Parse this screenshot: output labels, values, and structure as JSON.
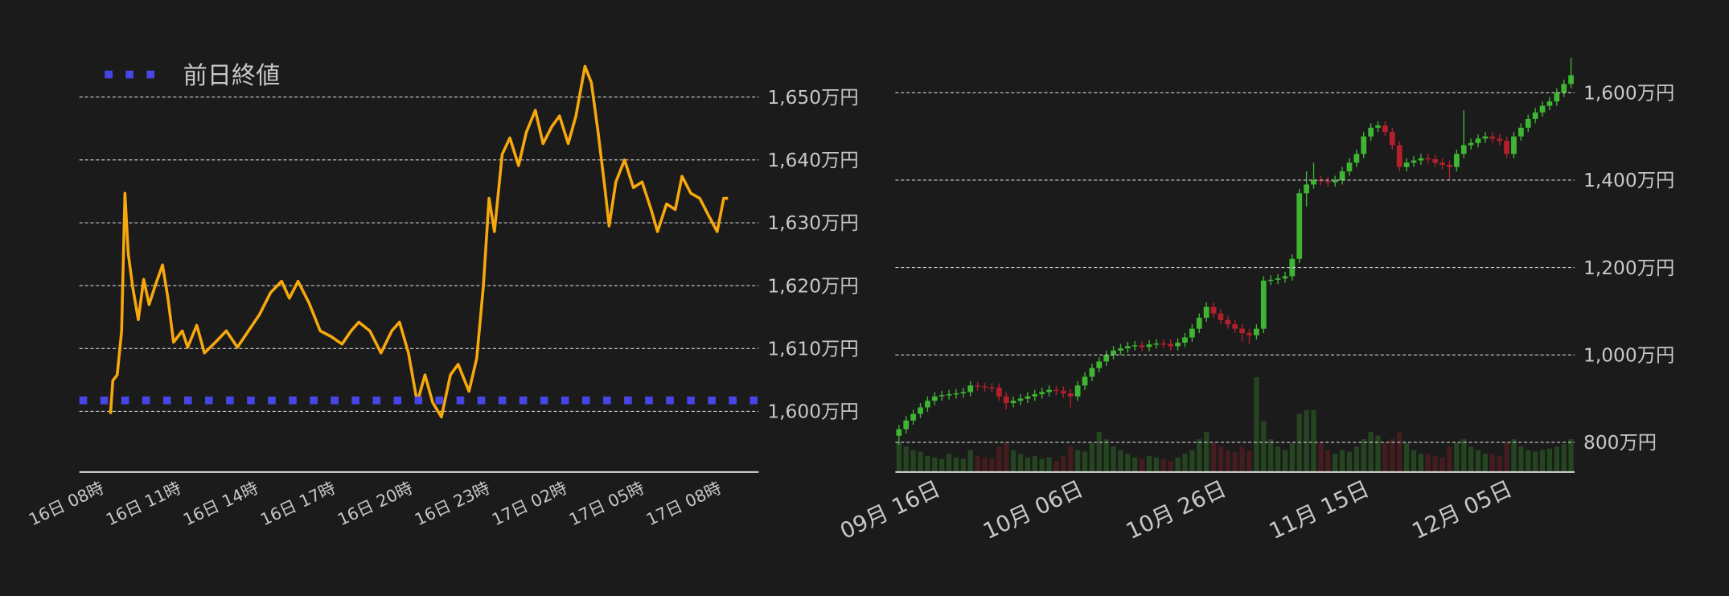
{
  "chart_data": [
    {
      "type": "line",
      "x": [
        8.21,
        8.3,
        8.47,
        8.64,
        8.77,
        8.9,
        9.07,
        9.29,
        9.5,
        9.71,
        9.93,
        10.23,
        10.44,
        10.66,
        11.0,
        11.21,
        11.56,
        11.86,
        12.29,
        12.71,
        13.14,
        13.57,
        14.0,
        14.43,
        14.86,
        15.16,
        15.5,
        15.93,
        16.36,
        16.79,
        17.21,
        17.56,
        17.86,
        18.29,
        18.72,
        19.14,
        19.44,
        19.79,
        20.13,
        20.43,
        20.73,
        21.07,
        21.42,
        21.72,
        22.14,
        22.44,
        22.7,
        22.92,
        23.13,
        23.43,
        23.73,
        24.07,
        24.37,
        24.72,
        25.02,
        25.36,
        25.66,
        26.0,
        26.3,
        26.65,
        26.9,
        27.16,
        27.42,
        27.59,
        27.85,
        28.19,
        28.53,
        28.87,
        29.22,
        29.47,
        29.82,
        30.16,
        30.42,
        30.76,
        31.11,
        31.45,
        31.79,
        32.04,
        32.21
      ],
      "series": [
        {
          "color": "#f7a80d",
          "values": [
            1599.6,
            1604.9,
            1605.8,
            1612.8,
            1634.7,
            1625.1,
            1619.8,
            1614.6,
            1621.0,
            1617.0,
            1619.8,
            1623.3,
            1618.0,
            1611.0,
            1612.8,
            1610.2,
            1613.7,
            1609.3,
            1611.0,
            1612.8,
            1610.2,
            1612.8,
            1615.4,
            1618.9,
            1620.7,
            1618.0,
            1620.7,
            1617.2,
            1612.8,
            1611.9,
            1610.7,
            1612.8,
            1614.2,
            1612.8,
            1609.3,
            1612.8,
            1614.2,
            1609.3,
            1601.4,
            1605.8,
            1601.4,
            1599.1,
            1605.8,
            1607.5,
            1603.2,
            1608.4,
            1619.8,
            1633.9,
            1628.6,
            1640.9,
            1643.5,
            1639.1,
            1644.4,
            1647.9,
            1642.6,
            1645.3,
            1647.0,
            1642.6,
            1647.0,
            1654.9,
            1652.3,
            1644.4,
            1635.6,
            1629.5,
            1636.5,
            1640.0,
            1635.6,
            1636.5,
            1632.1,
            1628.6,
            1633.0,
            1632.1,
            1637.4,
            1634.7,
            1633.9,
            1631.2,
            1628.6,
            1633.9,
            1633.9
          ]
        }
      ],
      "reference_line": {
        "name": "前日終値",
        "value": 1601.75,
        "color": "#4646e6"
      },
      "xlim": [
        7.0,
        33.4
      ],
      "xticks": [
        {
          "value": 8,
          "label": "16日 08時"
        },
        {
          "value": 11,
          "label": "16日 11時"
        },
        {
          "value": 14,
          "label": "16日 14時"
        },
        {
          "value": 17,
          "label": "16日 17時"
        },
        {
          "value": 20,
          "label": "16日 20時"
        },
        {
          "value": 23,
          "label": "16日 23時"
        },
        {
          "value": 26,
          "label": "17日 02時"
        },
        {
          "value": 29,
          "label": "17日 05時"
        },
        {
          "value": 32,
          "label": "17日 08時"
        }
      ],
      "ylim": [
        1590.35,
        1656.67
      ],
      "yticks": [
        {
          "value": 1600,
          "label": "1,600万円"
        },
        {
          "value": 1610,
          "label": "1,610万円"
        },
        {
          "value": 1620,
          "label": "1,620万円"
        },
        {
          "value": 1630,
          "label": "1,630万円"
        },
        {
          "value": 1640,
          "label": "1,640万円"
        },
        {
          "value": 1650,
          "label": "1,650万円"
        }
      ],
      "grid": true
    },
    {
      "type": "candlestick",
      "categories": [
        null,
        null,
        null,
        null,
        null,
        null,
        "09月 16日",
        null,
        null,
        null,
        null,
        null,
        null,
        null,
        null,
        null,
        null,
        null,
        null,
        null,
        null,
        null,
        null,
        null,
        null,
        null,
        "10月 06日",
        null,
        null,
        null,
        null,
        null,
        null,
        null,
        null,
        null,
        null,
        null,
        null,
        null,
        null,
        null,
        null,
        null,
        null,
        null,
        "10月 26日",
        null,
        null,
        null,
        null,
        null,
        null,
        null,
        null,
        null,
        null,
        null,
        null,
        null,
        null,
        null,
        null,
        null,
        null,
        null,
        "11月 15日",
        null,
        null,
        null,
        null,
        null,
        null,
        null,
        null,
        null,
        null,
        null,
        null,
        null,
        null,
        null,
        null,
        null,
        null,
        null,
        "12月 05日",
        null,
        null,
        null,
        null,
        null,
        null,
        null,
        null
      ],
      "open": [
        815,
        830,
        850,
        865,
        880,
        895,
        905,
        908,
        910,
        912,
        915,
        930,
        928,
        926,
        925,
        905,
        890,
        895,
        900,
        905,
        910,
        915,
        920,
        918,
        912,
        905,
        930,
        950,
        970,
        985,
        1000,
        1010,
        1015,
        1020,
        1022,
        1018,
        1024,
        1026,
        1025,
        1020,
        1028,
        1040,
        1060,
        1085,
        1110,
        1095,
        1080,
        1070,
        1060,
        1050,
        1045,
        1060,
        1170,
        1172,
        1175,
        1180,
        1220,
        1370,
        1390,
        1400,
        1398,
        1395,
        1400,
        1420,
        1440,
        1460,
        1500,
        1520,
        1525,
        1510,
        1480,
        1430,
        1440,
        1445,
        1450,
        1448,
        1440,
        1435,
        1430,
        1460,
        1480,
        1485,
        1495,
        1500,
        1495,
        1490,
        1460,
        1500,
        1520,
        1540,
        1555,
        1570,
        1580,
        1600,
        1620
      ],
      "high": [
        840,
        860,
        875,
        890,
        905,
        915,
        918,
        920,
        922,
        925,
        940,
        938,
        936,
        935,
        935,
        915,
        905,
        910,
        915,
        920,
        925,
        930,
        930,
        928,
        922,
        940,
        960,
        980,
        995,
        1010,
        1020,
        1025,
        1030,
        1032,
        1032,
        1034,
        1036,
        1036,
        1035,
        1038,
        1050,
        1070,
        1095,
        1120,
        1120,
        1105,
        1090,
        1080,
        1070,
        1060,
        1070,
        1180,
        1182,
        1185,
        1190,
        1230,
        1380,
        1420,
        1440,
        1410,
        1408,
        1410,
        1430,
        1450,
        1470,
        1510,
        1530,
        1535,
        1535,
        1520,
        1490,
        1450,
        1455,
        1460,
        1460,
        1458,
        1450,
        1445,
        1470,
        1560,
        1495,
        1505,
        1510,
        1510,
        1505,
        1500,
        1510,
        1530,
        1550,
        1565,
        1580,
        1590,
        1610,
        1630,
        1680
      ],
      "low": [
        795,
        820,
        840,
        855,
        870,
        885,
        895,
        898,
        900,
        902,
        905,
        918,
        916,
        915,
        895,
        875,
        880,
        885,
        890,
        895,
        900,
        905,
        908,
        902,
        880,
        895,
        920,
        940,
        960,
        975,
        990,
        1000,
        1005,
        1010,
        1008,
        1008,
        1014,
        1015,
        1010,
        1010,
        1018,
        1030,
        1050,
        1075,
        1085,
        1070,
        1060,
        1050,
        1030,
        1025,
        1035,
        1050,
        1160,
        1162,
        1165,
        1170,
        1210,
        1340,
        1380,
        1388,
        1385,
        1385,
        1390,
        1410,
        1430,
        1450,
        1490,
        1510,
        1500,
        1470,
        1420,
        1420,
        1430,
        1435,
        1438,
        1430,
        1425,
        1400,
        1420,
        1450,
        1470,
        1475,
        1485,
        1485,
        1480,
        1450,
        1450,
        1490,
        1510,
        1530,
        1545,
        1560,
        1570,
        1590,
        1610
      ],
      "close": [
        830,
        850,
        865,
        880,
        895,
        905,
        908,
        910,
        912,
        915,
        930,
        928,
        926,
        925,
        905,
        890,
        895,
        900,
        905,
        910,
        915,
        920,
        918,
        912,
        905,
        930,
        950,
        970,
        985,
        1000,
        1010,
        1015,
        1020,
        1022,
        1018,
        1024,
        1026,
        1025,
        1020,
        1028,
        1040,
        1060,
        1085,
        1110,
        1095,
        1080,
        1070,
        1060,
        1050,
        1045,
        1060,
        1170,
        1172,
        1175,
        1180,
        1220,
        1370,
        1390,
        1400,
        1398,
        1395,
        1400,
        1420,
        1440,
        1460,
        1500,
        1520,
        1525,
        1510,
        1480,
        1430,
        1440,
        1445,
        1450,
        1448,
        1440,
        1435,
        1430,
        1460,
        1480,
        1485,
        1495,
        1500,
        1495,
        1490,
        1460,
        1500,
        1520,
        1540,
        1555,
        1570,
        1580,
        1600,
        1620,
        1640
      ],
      "volume": [
        40,
        35,
        30,
        28,
        22,
        20,
        18,
        25,
        20,
        18,
        30,
        22,
        20,
        18,
        35,
        40,
        30,
        25,
        20,
        22,
        18,
        20,
        15,
        22,
        35,
        30,
        28,
        40,
        55,
        45,
        35,
        30,
        25,
        20,
        18,
        22,
        20,
        18,
        15,
        20,
        25,
        30,
        45,
        55,
        40,
        35,
        30,
        28,
        35,
        30,
        130,
        70,
        45,
        35,
        30,
        40,
        80,
        85,
        85,
        40,
        30,
        25,
        30,
        28,
        35,
        45,
        55,
        50,
        40,
        45,
        55,
        40,
        30,
        25,
        25,
        22,
        20,
        35,
        40,
        45,
        35,
        30,
        25,
        25,
        22,
        40,
        45,
        35,
        30,
        28,
        30,
        32,
        35,
        38,
        45
      ],
      "up_color": "#3fb534",
      "down_color": "#b3202c",
      "ylim": [
        732,
        1686
      ],
      "yticks": [
        {
          "value": 800,
          "label": "800万円"
        },
        {
          "value": 1000,
          "label": "1,000万円"
        },
        {
          "value": 1200,
          "label": "1,200万円"
        },
        {
          "value": 1400,
          "label": "1,400万円"
        },
        {
          "value": 1600,
          "label": "1,600万円"
        }
      ],
      "grid": true
    }
  ]
}
